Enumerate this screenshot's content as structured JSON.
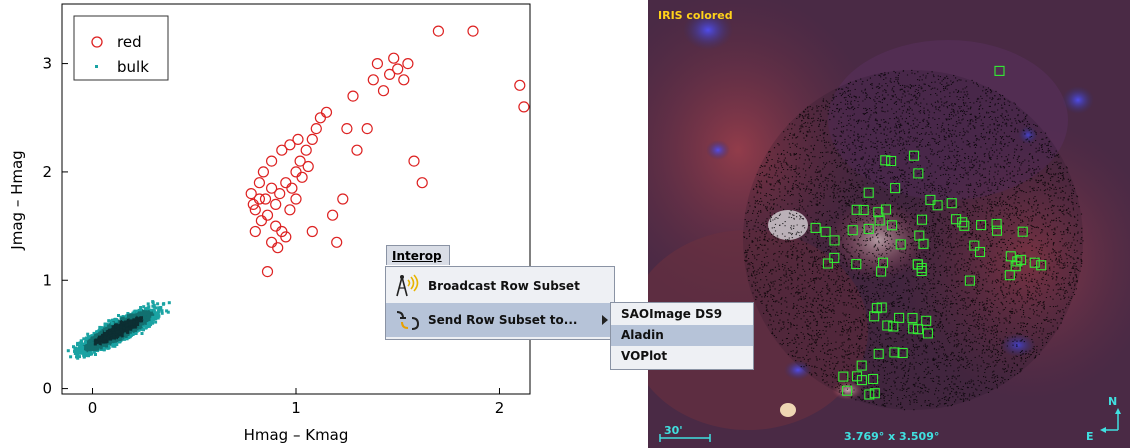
{
  "chart_data": {
    "type": "scatter",
    "xlabel": "Hmag – Kmag",
    "ylabel": "Jmag – Hmag",
    "xlim": [
      -0.15,
      2.15
    ],
    "ylim": [
      -0.05,
      3.55
    ],
    "x_ticks": [
      "0",
      "1",
      "2"
    ],
    "y_ticks": [
      "0",
      "1",
      "2",
      "3"
    ],
    "legend_position": "top-left",
    "series": [
      {
        "name": "red",
        "marker": "open-circle",
        "color": "#dd2222",
        "points": [
          [
            0.82,
            1.9
          ],
          [
            0.78,
            1.8
          ],
          [
            0.85,
            1.75
          ],
          [
            0.88,
            1.85
          ],
          [
            0.8,
            1.65
          ],
          [
            0.83,
            1.55
          ],
          [
            0.86,
            1.6
          ],
          [
            0.9,
            1.7
          ],
          [
            0.92,
            1.8
          ],
          [
            0.95,
            1.9
          ],
          [
            0.98,
            1.85
          ],
          [
            1.0,
            2.0
          ],
          [
            1.02,
            2.1
          ],
          [
            1.05,
            2.2
          ],
          [
            1.08,
            2.3
          ],
          [
            1.1,
            2.4
          ],
          [
            1.12,
            2.5
          ],
          [
            1.15,
            2.55
          ],
          [
            0.9,
            1.5
          ],
          [
            0.93,
            1.45
          ],
          [
            0.97,
            1.65
          ],
          [
            1.0,
            1.75
          ],
          [
            1.03,
            1.95
          ],
          [
            1.06,
            2.05
          ],
          [
            0.88,
            2.1
          ],
          [
            0.93,
            2.2
          ],
          [
            0.97,
            2.25
          ],
          [
            1.01,
            2.3
          ],
          [
            0.84,
            2.0
          ],
          [
            0.8,
            1.45
          ],
          [
            0.88,
            1.35
          ],
          [
            0.91,
            1.3
          ],
          [
            0.86,
            1.08
          ],
          [
            1.2,
            1.35
          ],
          [
            1.18,
            1.6
          ],
          [
            1.23,
            1.75
          ],
          [
            1.25,
            2.4
          ],
          [
            1.28,
            2.7
          ],
          [
            1.35,
            2.4
          ],
          [
            1.38,
            2.85
          ],
          [
            1.4,
            3.0
          ],
          [
            1.43,
            2.75
          ],
          [
            1.46,
            2.9
          ],
          [
            1.48,
            3.05
          ],
          [
            1.5,
            2.95
          ],
          [
            1.53,
            2.85
          ],
          [
            1.55,
            3.0
          ],
          [
            1.3,
            2.2
          ],
          [
            1.58,
            2.1
          ],
          [
            1.62,
            1.9
          ],
          [
            1.7,
            3.3
          ],
          [
            1.87,
            3.3
          ],
          [
            2.1,
            2.8
          ],
          [
            2.12,
            2.6
          ],
          [
            1.08,
            1.45
          ],
          [
            0.95,
            1.4
          ],
          [
            0.82,
            1.75
          ],
          [
            0.79,
            1.7
          ]
        ]
      },
      {
        "name": "bulk",
        "marker": "dot",
        "color": "#1aa3a3",
        "cloud": {
          "center": [
            0.12,
            0.55
          ],
          "spread_x": 0.2,
          "spread_y": 0.22,
          "tilt": 0.85,
          "count": 4500
        }
      }
    ]
  },
  "sky": {
    "title": "IRIS colored",
    "scale_label": "30'",
    "fov_label": "3.769° x 3.509°",
    "compass_n": "N",
    "compass_e": "E"
  },
  "interop": {
    "title": "Interop",
    "items": [
      {
        "label": "Broadcast Row Subset",
        "icon": "broadcast-antenna-icon"
      },
      {
        "label": "Send Row Subset to...",
        "icon": "samp-connector-icon"
      }
    ],
    "submenu": [
      "SAOImage DS9",
      "Aladin",
      "VOPlot"
    ],
    "selected_submenu": "Aladin"
  },
  "colors": {
    "menu_bg": "#eef0f4",
    "menu_selected": "#b6c3d8",
    "red_marker": "#dd2222",
    "bulk_marker": "#1aa3a3",
    "source_box": "#33ee33"
  }
}
